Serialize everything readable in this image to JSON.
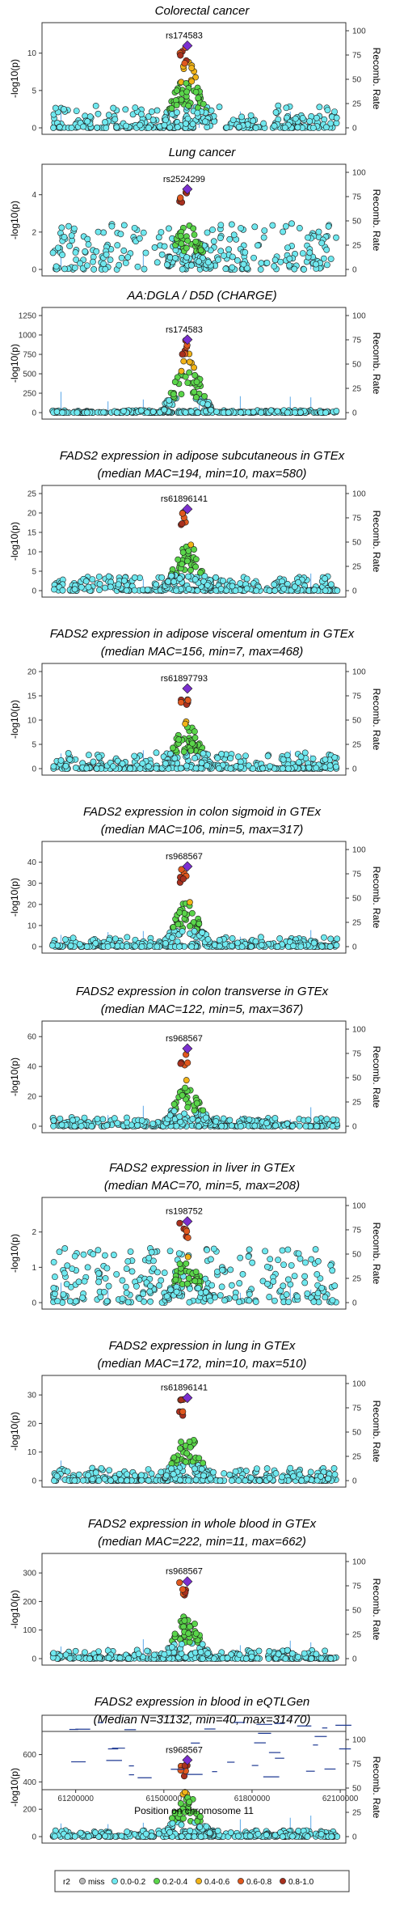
{
  "chart_data": {
    "type": "scatter",
    "x_range": [
      61080000,
      62130000
    ],
    "x_ticks": [
      61200000,
      61500000,
      61800000,
      62100000
    ],
    "x_label": "Position on chromosome 11",
    "y_label": "-log10(p)",
    "y2_label": "Recomb. Rate",
    "y2_ticks": [
      0,
      25,
      50,
      75,
      100
    ],
    "panels": [
      {
        "title": [
          "Colorectal cancer"
        ],
        "lead_snp": "rs174583",
        "lead_y": 11,
        "y_range": [
          0,
          13
        ],
        "y_ticks": [
          0,
          5,
          10
        ],
        "peak": "high",
        "bg": 2
      },
      {
        "title": [
          "Lung cancer"
        ],
        "lead_snp": "rs2524299",
        "lead_y": 4.3,
        "y_range": [
          0,
          5.2
        ],
        "y_ticks": [
          0,
          2,
          4
        ],
        "peak": "low",
        "bg": 2.3
      },
      {
        "title": [
          "AA:DGLA / D5D (CHARGE)"
        ],
        "lead_snp": "rs174583",
        "lead_y": 940,
        "y_range": [
          0,
          1250
        ],
        "y_ticks": [
          0,
          250,
          500,
          750,
          1000,
          1250
        ],
        "peak": "high",
        "bg": 20
      },
      {
        "title": [
          "FADS2 expression in adipose subcutaneous in GTEx",
          "(median MAC=194, min=10, max=580)"
        ],
        "lead_snp": "rs61896141",
        "lead_y": 21,
        "y_range": [
          0,
          25
        ],
        "y_ticks": [
          0,
          5,
          10,
          15,
          20,
          25
        ],
        "peak": "mid",
        "bg": 2.5
      },
      {
        "title": [
          "FADS2 expression in adipose visceral omentum in GTEx",
          "(median MAC=156, min=7, max=468)"
        ],
        "lead_snp": "rs61897793",
        "lead_y": 16.5,
        "y_range": [
          0,
          20
        ],
        "y_ticks": [
          0,
          5,
          10,
          15,
          20
        ],
        "peak": "mid",
        "bg": 2.2
      },
      {
        "title": [
          "FADS2 expression in colon sigmoid in GTEx",
          "(median MAC=106, min=5, max=317)"
        ],
        "lead_snp": "rs968567",
        "lead_y": 38,
        "y_range": [
          0,
          46
        ],
        "y_ticks": [
          0,
          10,
          20,
          30,
          40
        ],
        "peak": "mid",
        "bg": 3
      },
      {
        "title": [
          "FADS2 expression in colon transverse in GTEx",
          "(median MAC=122, min=5, max=367)"
        ],
        "lead_snp": "rs968567",
        "lead_y": 52,
        "y_range": [
          0,
          65
        ],
        "y_ticks": [
          0,
          20,
          40,
          60
        ],
        "peak": "mid",
        "bg": 4
      },
      {
        "title": [
          "FADS2 expression in liver in GTEx",
          "(median MAC=70, min=5, max=208)"
        ],
        "lead_snp": "rs198752",
        "lead_y": 2.3,
        "y_range": [
          0,
          2.75
        ],
        "y_ticks": [
          0,
          1,
          2
        ],
        "peak": "low",
        "bg": 1.4
      },
      {
        "title": [
          "FADS2 expression in lung in GTEx",
          "(median MAC=172, min=10, max=510)"
        ],
        "lead_snp": "rs61896141",
        "lead_y": 29,
        "y_range": [
          0,
          34
        ],
        "y_ticks": [
          0,
          10,
          20,
          30
        ],
        "peak": "mid",
        "bg": 3
      },
      {
        "title": [
          "FADS2 expression in whole blood in GTEx",
          "(median MAC=222, min=11, max=662)"
        ],
        "lead_snp": "rs968567",
        "lead_y": 270,
        "y_range": [
          0,
          340
        ],
        "y_ticks": [
          0,
          100,
          200,
          300
        ],
        "peak": "mid",
        "bg": 20
      },
      {
        "title": [
          "FADS2 expression in blood in eQTLGen",
          "(Median N=31132, min=40, max=31470)"
        ],
        "lead_snp": "rs968567",
        "lead_y": 560,
        "y_range": [
          0,
          710
        ],
        "y_ticks": [
          0,
          200,
          400,
          600
        ],
        "peak": "mid",
        "bg": 30
      }
    ],
    "legend": {
      "title": "r2",
      "entries": [
        {
          "label": "miss",
          "color": "#b8b8b8"
        },
        {
          "label": "0.0-0.2",
          "color": "#6fe8ef"
        },
        {
          "label": "0.2-0.4",
          "color": "#5ad54a"
        },
        {
          "label": "0.4-0.6",
          "color": "#f1b318"
        },
        {
          "label": "0.6-0.8",
          "color": "#e0581e"
        },
        {
          "label": "0.8-1.0",
          "color": "#a8301e"
        }
      ],
      "lead_color": "#7b2fd0"
    }
  }
}
